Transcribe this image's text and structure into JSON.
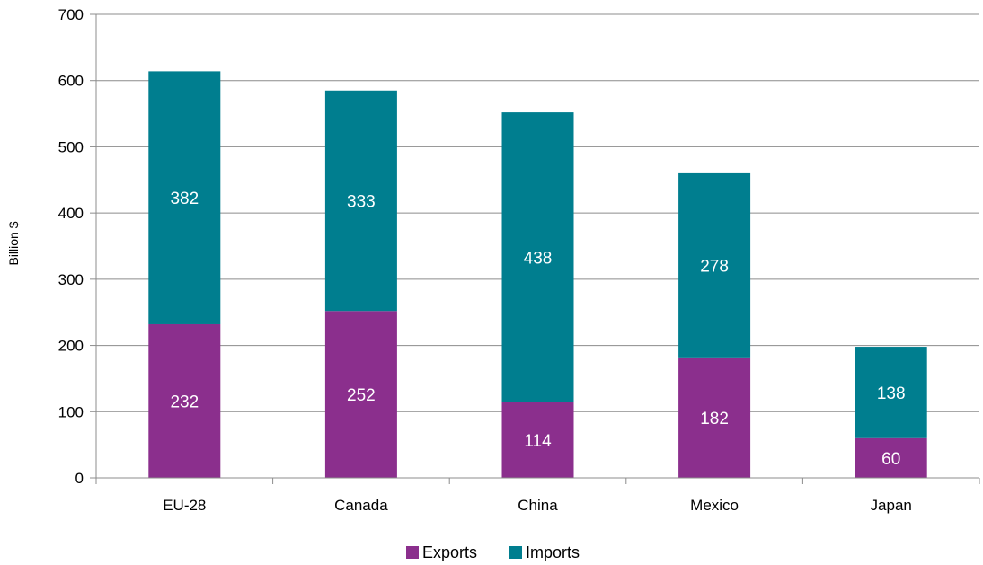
{
  "chart_data": {
    "type": "bar",
    "stacked": true,
    "title": "",
    "xlabel": "",
    "ylabel": "Billion $",
    "ylim": [
      0,
      700
    ],
    "yticks": [
      0,
      100,
      200,
      300,
      400,
      500,
      600,
      700
    ],
    "categories": [
      "EU-28",
      "Canada",
      "China",
      "Mexico",
      "Japan"
    ],
    "series": [
      {
        "name": "Exports",
        "values": [
          232,
          252,
          114,
          182,
          60
        ],
        "color": "#8b2f8d"
      },
      {
        "name": "Imports",
        "values": [
          382,
          333,
          438,
          278,
          138
        ],
        "color": "#007e8f"
      }
    ],
    "data_labels": true,
    "grid": true,
    "legend_position": "bottom"
  }
}
